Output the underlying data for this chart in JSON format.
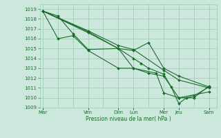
{
  "bg_color": "#cce8dc",
  "grid_color": "#99ccb3",
  "line_color": "#1a6b2a",
  "xlabel": "Pression niveau de la mer( hPa )",
  "ylim": [
    1009,
    1019.5
  ],
  "yticks": [
    1009,
    1010,
    1011,
    1012,
    1013,
    1014,
    1015,
    1016,
    1017,
    1018,
    1019
  ],
  "day_labels": [
    "Mar",
    "Ven",
    "Dim",
    "Lun",
    "Mer",
    "Jeu",
    "Sam"
  ],
  "day_x": [
    0,
    3,
    5,
    6,
    8,
    9,
    11
  ],
  "xlim": [
    -0.2,
    11.5
  ],
  "lines": [
    {
      "x": [
        0,
        3,
        5,
        6,
        7,
        8,
        9,
        11
      ],
      "y": [
        1018.8,
        1016.7,
        1015.0,
        1014.8,
        1015.6,
        1013.0,
        1012.2,
        1011.1
      ]
    },
    {
      "x": [
        0,
        3,
        5,
        6,
        6.5,
        7,
        8,
        8.5,
        9,
        9.5,
        10,
        11
      ],
      "y": [
        1018.8,
        1016.6,
        1015.0,
        1014.0,
        1013.5,
        1013.0,
        1012.4,
        1011.1,
        1009.4,
        1010.0,
        1010.2,
        1011.1
      ]
    },
    {
      "x": [
        0,
        1,
        2,
        3,
        5,
        6,
        7,
        8,
        9,
        11
      ],
      "y": [
        1018.8,
        1018.3,
        1016.5,
        1014.9,
        1015.0,
        1013.0,
        1012.5,
        1012.2,
        1010.0,
        1010.6
      ]
    },
    {
      "x": [
        0,
        1,
        2,
        3,
        5,
        6,
        7.5,
        8,
        9,
        10,
        11
      ],
      "y": [
        1018.8,
        1016.0,
        1016.3,
        1014.8,
        1013.0,
        1013.0,
        1012.5,
        1010.5,
        1010.0,
        1010.0,
        1011.2
      ]
    },
    {
      "x": [
        0,
        3,
        5,
        6,
        8,
        9,
        11
      ],
      "y": [
        1018.8,
        1016.8,
        1015.3,
        1014.9,
        1012.8,
        1011.8,
        1011.0
      ]
    }
  ]
}
